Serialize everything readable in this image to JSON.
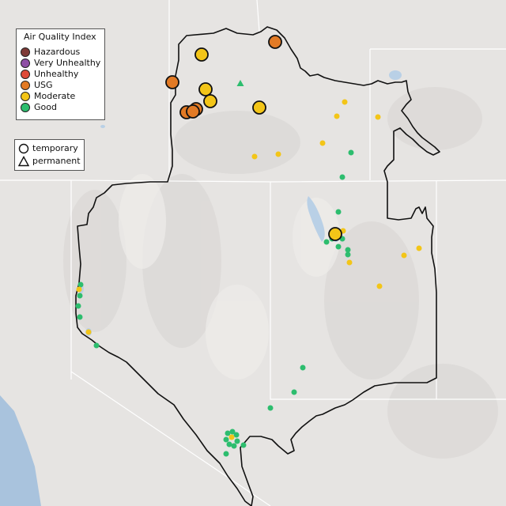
{
  "legend": {
    "title": "Air Quality Index",
    "categories": [
      {
        "label": "Hazardous",
        "color": "#7e3a36"
      },
      {
        "label": "Very Unhealthy",
        "color": "#8e4fa5"
      },
      {
        "label": "Unhealthy",
        "color": "#df4a38"
      },
      {
        "label": "USG",
        "color": "#e27a25"
      },
      {
        "label": "Moderate",
        "color": "#f3c518"
      },
      {
        "label": "Good",
        "color": "#2dbd6e"
      }
    ]
  },
  "monitor_legend": {
    "temporary": "temporary",
    "permanent": "permanent"
  },
  "colors": {
    "background": "#e6e4e2",
    "state_lines": "#ffffff",
    "region_outline": "#111111",
    "ocean": "#a9c3dd",
    "lakes": "#b9d0e6"
  }
}
